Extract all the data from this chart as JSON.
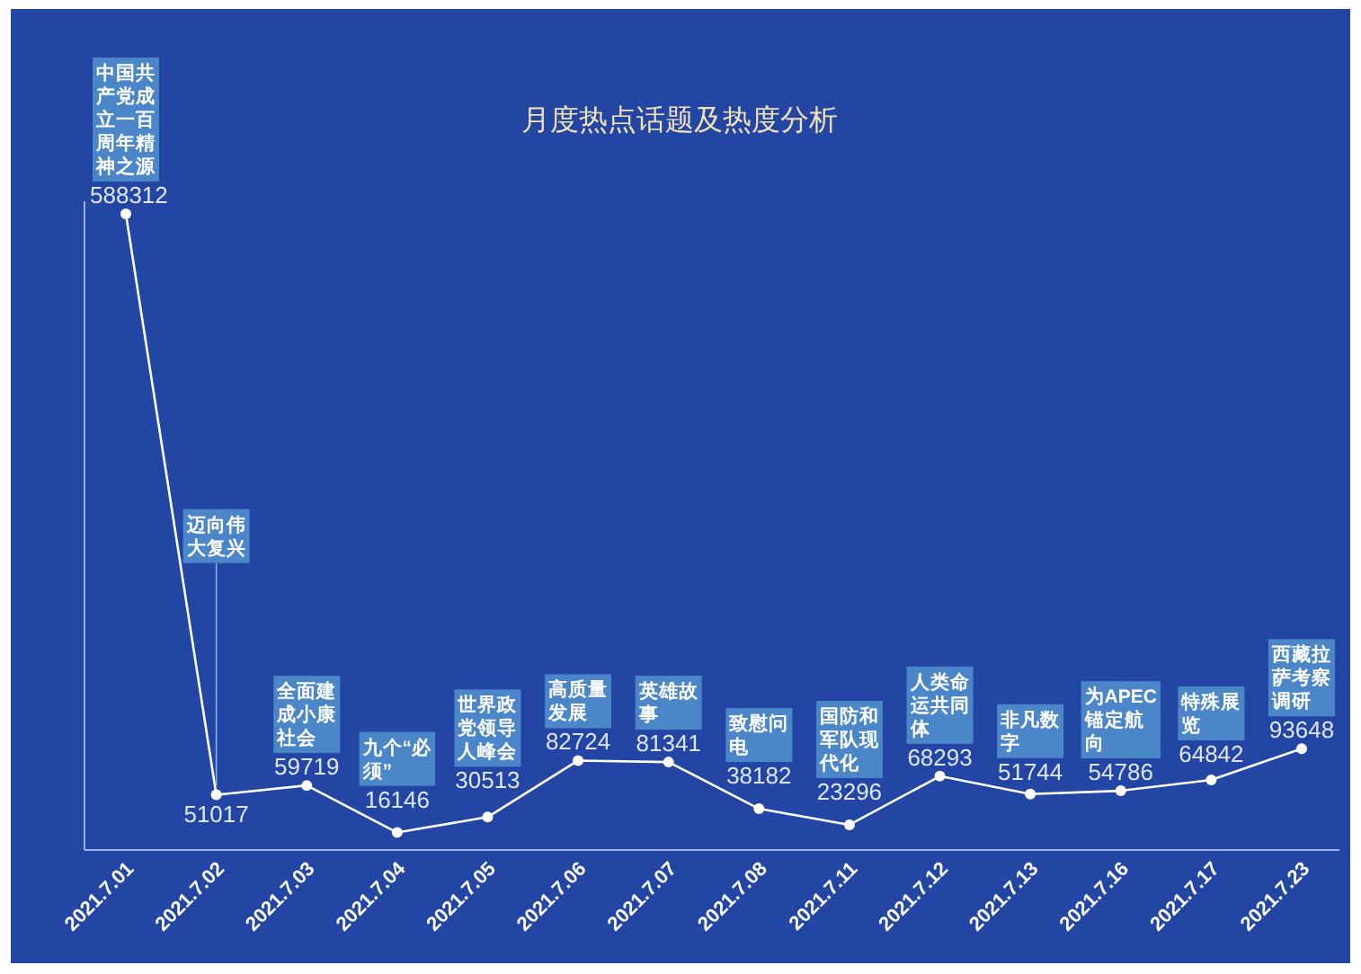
{
  "chart_data": {
    "type": "line",
    "title": "月度热点话题及热度分析",
    "categories": [
      "2021.7.01",
      "2021.7.02",
      "2021.7.03",
      "2021.7.04",
      "2021.7.05",
      "2021.7.06",
      "2021.7.07",
      "2021.7.08",
      "2021.7.11",
      "2021.7.12",
      "2021.7.13",
      "2021.7.16",
      "2021.7.17",
      "2021.7.23"
    ],
    "values": [
      588312,
      51017,
      59719,
      16146,
      30513,
      82724,
      81341,
      38182,
      23296,
      68293,
      51744,
      54786,
      64842,
      93648
    ],
    "color": "#ffffff",
    "ylim": [
      0,
      600000
    ],
    "tick_labels": "x",
    "data_labels": true,
    "marker": "circle",
    "line_style": "solid",
    "annotations": [
      {
        "text": "中国共产党成立一百周年精神之源",
        "x": "2021.7.01",
        "y": 588312
      },
      {
        "text": "迈向伟大复兴",
        "x": "2021.7.02",
        "y": 51017
      },
      {
        "text": "全面建成小康社会",
        "x": "2021.7.03",
        "y": 59719
      },
      {
        "text": "九个“必须”",
        "x": "2021.7.04",
        "y": 16146
      },
      {
        "text": "世界政党领导人峰会",
        "x": "2021.7.05",
        "y": 30513
      },
      {
        "text": "高质量发展",
        "x": "2021.7.06",
        "y": 82724
      },
      {
        "text": "英雄故事",
        "x": "2021.7.07",
        "y": 81341
      },
      {
        "text": "致慰问电",
        "x": "2021.7.08",
        "y": 38182
      },
      {
        "text": "国防和军队现代化",
        "x": "2021.7.11",
        "y": 23296
      },
      {
        "text": "人类命运共同体",
        "x": "2021.7.12",
        "y": 68293
      },
      {
        "text": "非凡数字",
        "x": "2021.7.13",
        "y": 51744
      },
      {
        "text": "为APEC锚定航向",
        "x": "2021.7.16",
        "y": 54786
      },
      {
        "text": "特殊展览",
        "x": "2021.7.17",
        "y": 64842
      },
      {
        "text": "西藏拉萨考察调研",
        "x": "2021.7.23",
        "y": 93648
      }
    ]
  }
}
